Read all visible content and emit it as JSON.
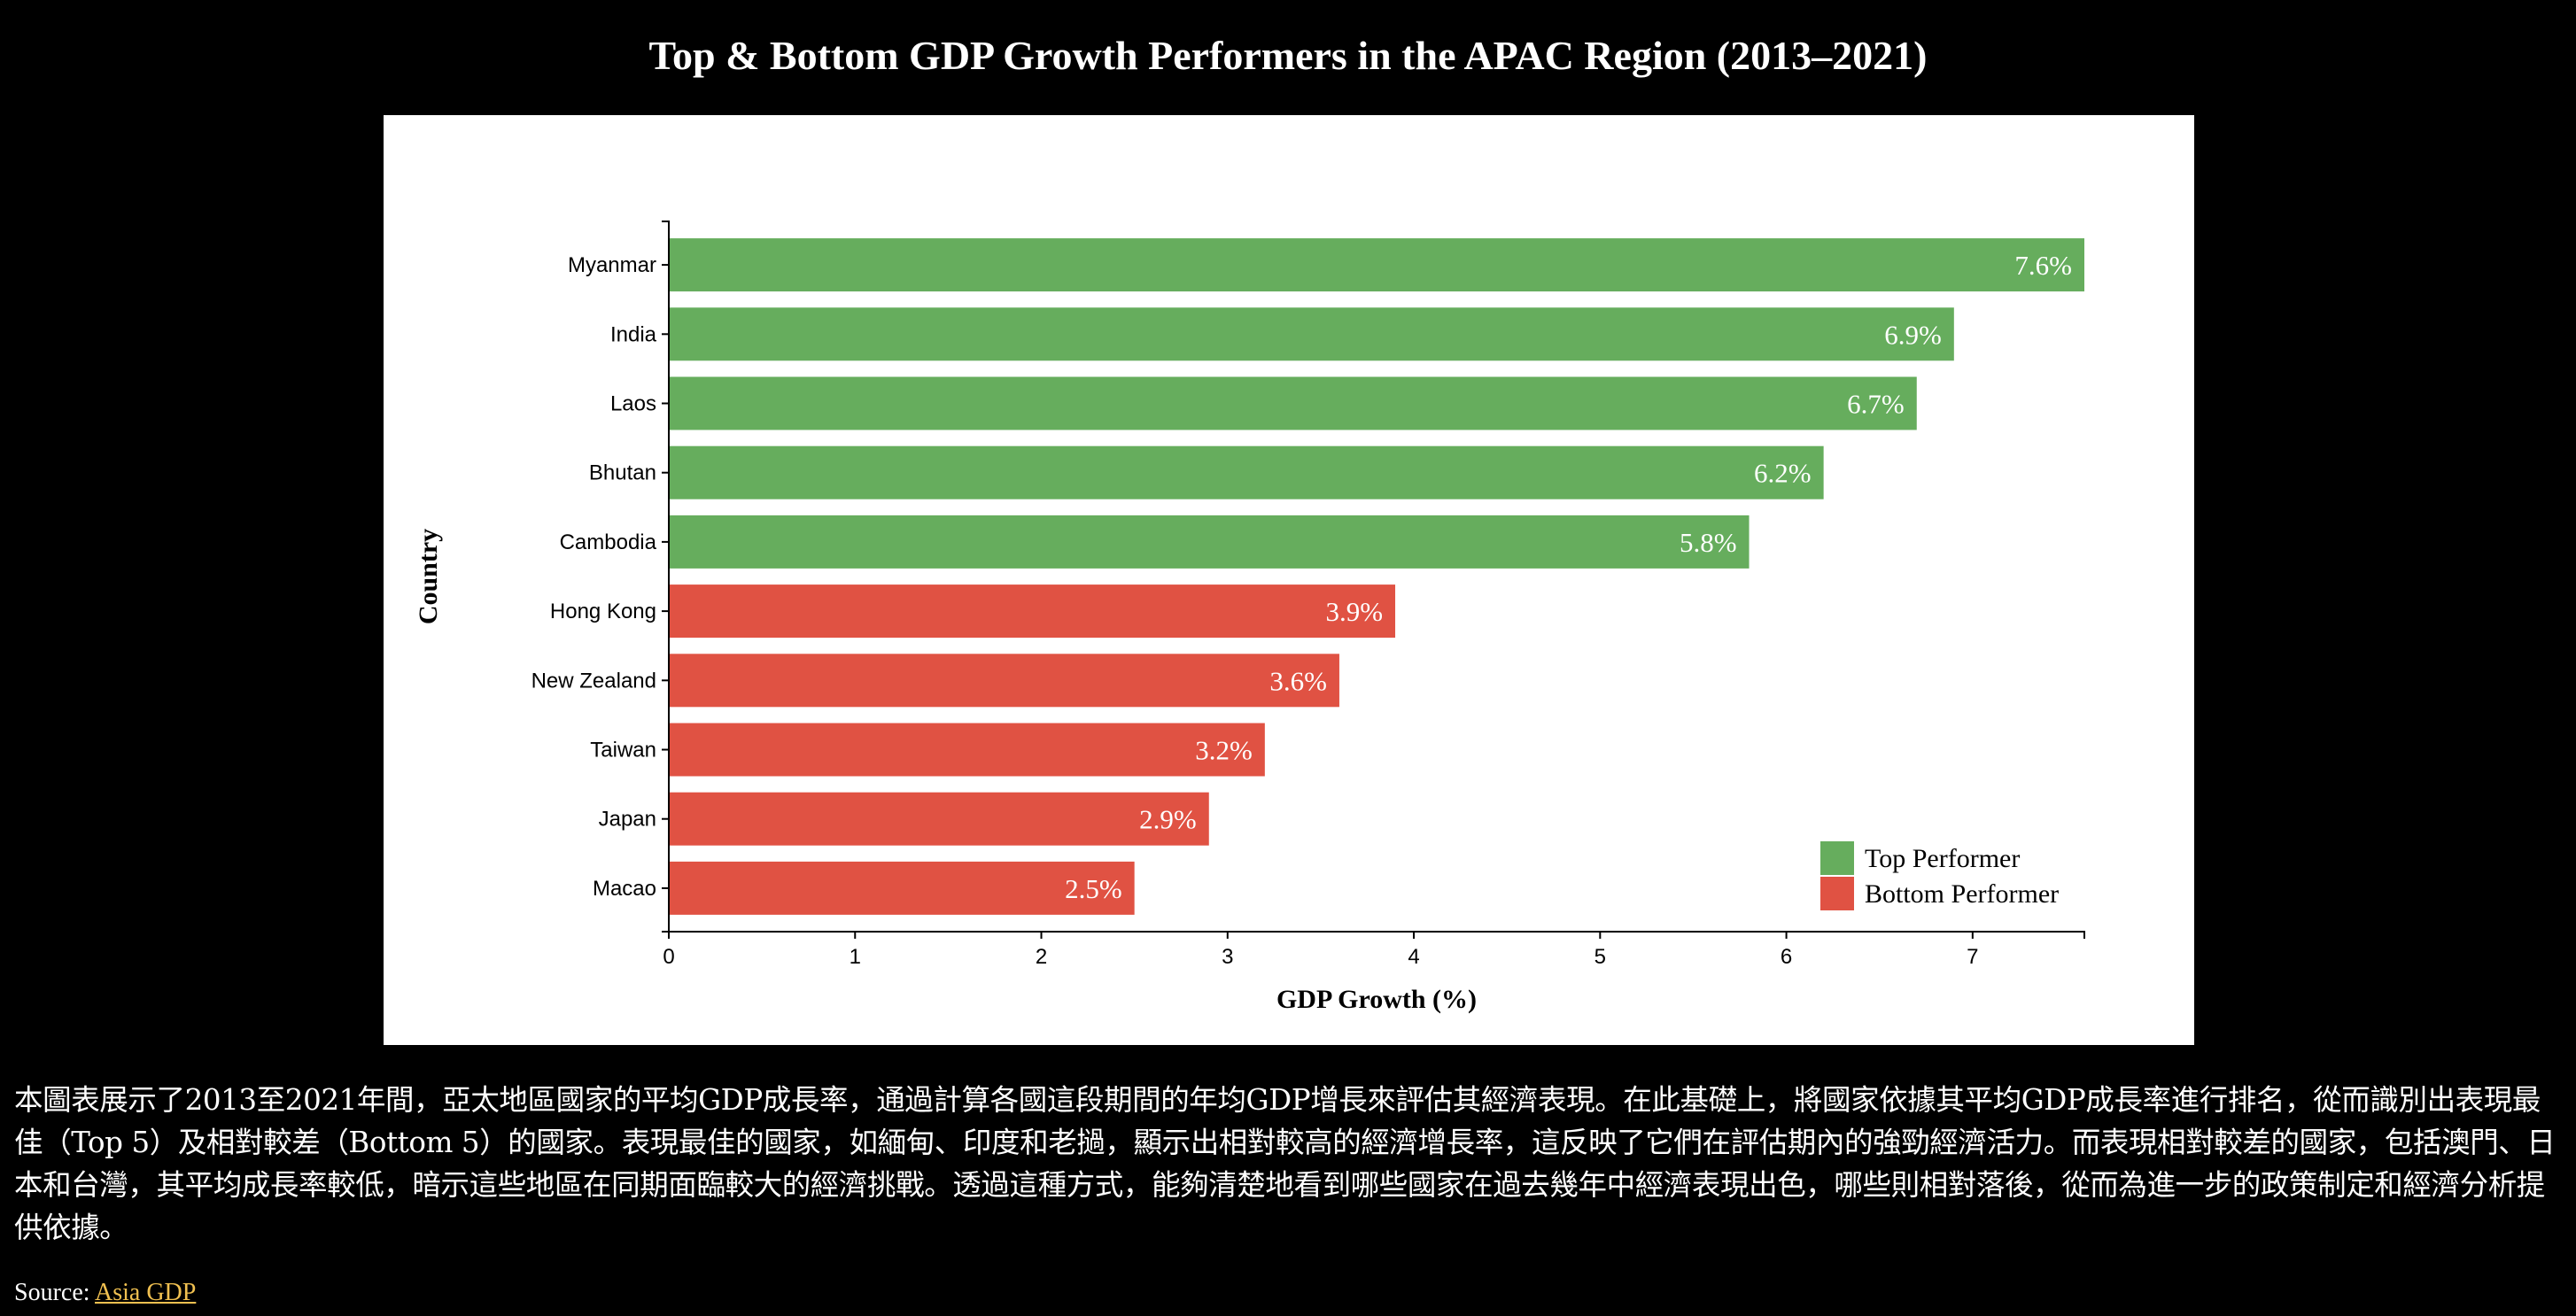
{
  "page": {
    "description": "本圖表展示了2013至2021年間，亞太地區國家的平均GDP成長率，通過計算各國這段期間的年均GDP增長來評估其經濟表現。在此基礎上，將國家依據其平均GDP成長率進行排名，從而識別出表現最佳（Top 5）及相對較差（Bottom 5）的國家。表現最佳的國家，如緬甸、印度和老撾，顯示出相對較高的經濟增長率，這反映了它們在評估期內的強勁經濟活力。而表現相對較差的國家，包括澳門、日本和台灣，其平均成長率較低，暗示這些地區在同期面臨較大的經濟挑戰。透過這種方式，能夠清楚地看到哪些國家在過去幾年中經濟表現出色，哪些則相對落後，從而為進一步的政策制定和經濟分析提供依據。",
    "source_prefix": "Source:",
    "source_link_text": "Asia GDP"
  },
  "chart_data": {
    "type": "bar",
    "orientation": "horizontal",
    "title": "Top & Bottom GDP Growth Performers in the APAC Region (2013–2021)",
    "xlabel": "GDP Growth (%)",
    "ylabel": "Country",
    "xlim": [
      0,
      7.6
    ],
    "xticks": [
      0,
      1,
      2,
      3,
      4,
      5,
      6,
      7
    ],
    "grid": false,
    "legend_position": "bottom-right",
    "categories": [
      "Myanmar",
      "India",
      "Laos",
      "Bhutan",
      "Cambodia",
      "Hong Kong",
      "New Zealand",
      "Taiwan",
      "Japan",
      "Macao"
    ],
    "values": [
      7.6,
      6.9,
      6.7,
      6.2,
      5.8,
      3.9,
      3.6,
      3.2,
      2.9,
      2.5
    ],
    "groups": [
      "top",
      "top",
      "top",
      "top",
      "top",
      "bottom",
      "bottom",
      "bottom",
      "bottom",
      "bottom"
    ],
    "value_labels": [
      "7.6%",
      "6.9%",
      "6.7%",
      "6.2%",
      "5.8%",
      "3.9%",
      "3.6%",
      "3.2%",
      "2.9%",
      "2.5%"
    ],
    "legend": [
      {
        "key": "top",
        "label": "Top Performer",
        "color": "#66ad5d"
      },
      {
        "key": "bottom",
        "label": "Bottom Performer",
        "color": "#e05243"
      }
    ]
  }
}
